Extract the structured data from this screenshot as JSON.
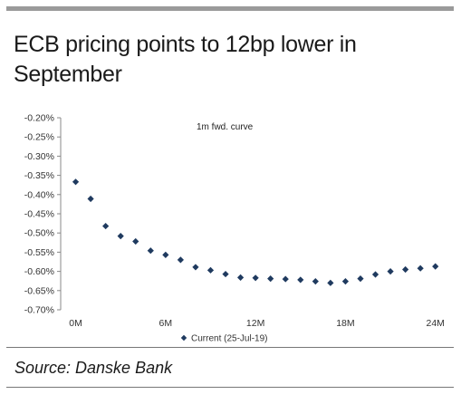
{
  "title": "ECB pricing points to 12bp lower in September",
  "source": "Source: Danske Bank",
  "chart_data": {
    "type": "scatter",
    "title": "ECB pricing points to 12bp lower in September",
    "annotation": "1m fwd. curve",
    "xlabel": "",
    "ylabel": "",
    "x_ticks": [
      "0M",
      "6M",
      "12M",
      "18M",
      "24M"
    ],
    "xlim": [
      -1,
      24.5
    ],
    "y_ticks": [
      "-0.20%",
      "-0.25%",
      "-0.30%",
      "-0.35%",
      "-0.40%",
      "-0.45%",
      "-0.50%",
      "-0.55%",
      "-0.60%",
      "-0.65%",
      "-0.70%"
    ],
    "ylim": [
      -0.7,
      -0.2
    ],
    "grid": false,
    "legend": "bottom-center",
    "series": [
      {
        "name": "Current (25-Jul-19)",
        "color": "#1f3a5f",
        "marker": "diamond",
        "x": [
          0,
          1,
          2,
          3,
          4,
          5,
          6,
          7,
          8,
          9,
          10,
          11,
          12,
          13,
          14,
          15,
          16,
          17,
          18,
          19,
          20,
          21,
          22,
          23,
          24
        ],
        "y": [
          -0.367,
          -0.411,
          -0.482,
          -0.508,
          -0.522,
          -0.546,
          -0.557,
          -0.57,
          -0.589,
          -0.597,
          -0.607,
          -0.616,
          -0.617,
          -0.619,
          -0.62,
          -0.622,
          -0.626,
          -0.63,
          -0.626,
          -0.619,
          -0.608,
          -0.6,
          -0.595,
          -0.592,
          -0.587
        ]
      }
    ]
  }
}
